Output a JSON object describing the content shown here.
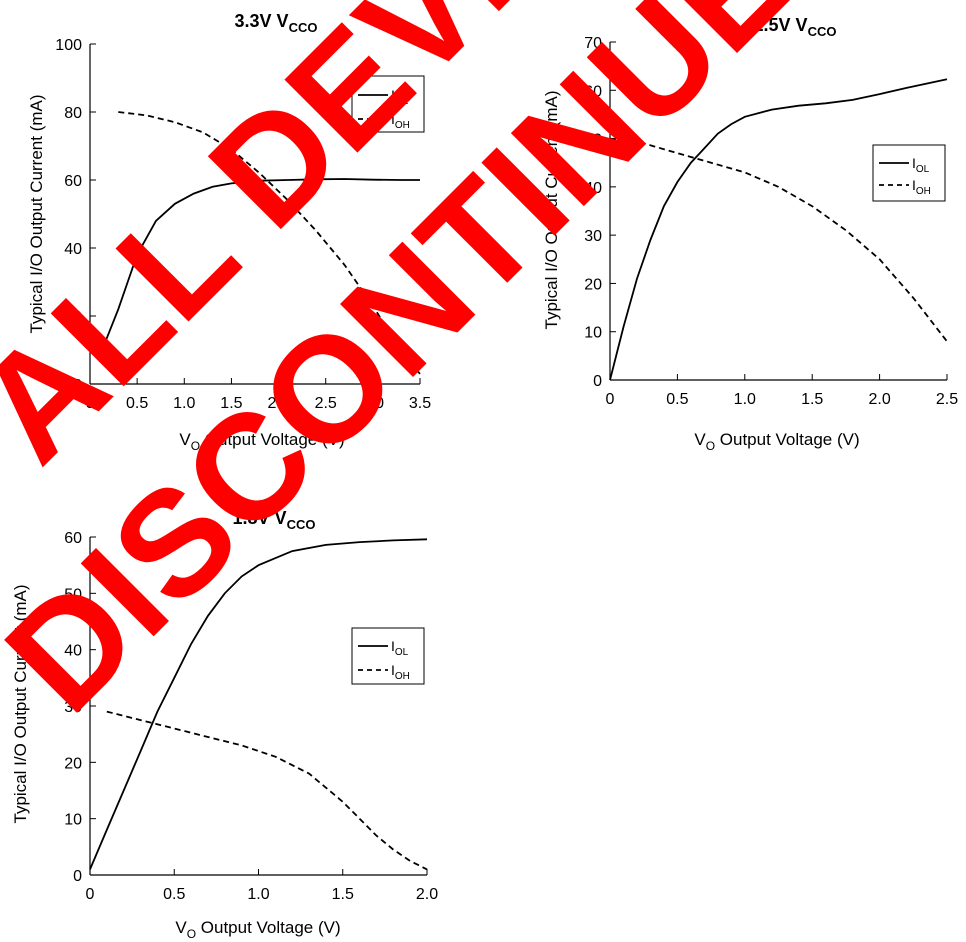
{
  "watermark": {
    "line1": "ALL DEVICES",
    "line2": "DISCONTINUED",
    "color": "#ff0000"
  },
  "chart_data": [
    {
      "type": "line",
      "title_main": "3.3V V",
      "title_sub": "CCO",
      "xlabel_main": "V",
      "xlabel_sub": "O",
      "xlabel_rest": " Output Voltage (V)",
      "ylabel": "Typical I/O Output Current (mA)",
      "xlim": [
        0,
        3.5
      ],
      "ylim": [
        0,
        100
      ],
      "xticks": [
        0,
        0.5,
        1.0,
        1.5,
        2.0,
        2.5,
        3.0,
        3.5
      ],
      "xtick_labels": [
        "0",
        "0.5",
        "1.0",
        "1.5",
        "2.0",
        "2.5",
        "3.0",
        "3.5"
      ],
      "yticks": [
        0,
        20,
        40,
        60,
        80,
        100
      ],
      "ytick_labels": [
        "0",
        "20",
        "40",
        "60",
        "80",
        "100"
      ],
      "legend_position": "top-right",
      "series": [
        {
          "name_main": "I",
          "name_sub": "OL",
          "style": "solid",
          "x": [
            0.1,
            0.3,
            0.5,
            0.7,
            0.9,
            1.1,
            1.3,
            1.5,
            1.8,
            2.1,
            2.4,
            2.7,
            3.0,
            3.3,
            3.5
          ],
          "y": [
            8,
            22,
            38,
            48,
            53,
            56,
            58,
            59,
            59.8,
            60,
            60.2,
            60.3,
            60.1,
            60,
            60
          ]
        },
        {
          "name_main": "I",
          "name_sub": "OH",
          "style": "dashed",
          "x": [
            0.3,
            0.6,
            0.9,
            1.2,
            1.5,
            1.8,
            2.1,
            2.4,
            2.7,
            3.0,
            3.2,
            3.4,
            3.5
          ],
          "y": [
            80,
            79,
            77,
            74,
            69,
            62,
            54,
            45,
            35,
            23,
            14,
            6,
            3
          ]
        }
      ]
    },
    {
      "type": "line",
      "title_main": "2.5V V",
      "title_sub": "CCO",
      "xlabel_main": "V",
      "xlabel_sub": "O",
      "xlabel_rest": " Output Voltage (V)",
      "ylabel": "Typical I/O Output Current (mA)",
      "xlim": [
        0,
        2.5
      ],
      "ylim": [
        0,
        70
      ],
      "xticks": [
        0,
        0.5,
        1.0,
        1.5,
        2.0,
        2.5
      ],
      "xtick_labels": [
        "0",
        "0.5",
        "1.0",
        "1.5",
        "2.0",
        "2.5"
      ],
      "yticks": [
        0,
        10,
        20,
        30,
        40,
        50,
        60,
        70
      ],
      "ytick_labels": [
        "0",
        "10",
        "20",
        "30",
        "40",
        "50",
        "60",
        "70"
      ],
      "legend_position": "right",
      "series": [
        {
          "name_main": "I",
          "name_sub": "OL",
          "style": "solid",
          "x": [
            0,
            0.1,
            0.2,
            0.3,
            0.4,
            0.5,
            0.6,
            0.7,
            0.8,
            0.9,
            1.0,
            1.2,
            1.4,
            1.6,
            1.8,
            2.0,
            2.2,
            2.5
          ],
          "y": [
            0,
            11,
            21,
            29,
            36,
            41,
            45,
            48,
            51,
            53,
            54.5,
            56,
            56.8,
            57.3,
            58,
            59.2,
            60.5,
            62.3
          ]
        },
        {
          "name_main": "I",
          "name_sub": "OH",
          "style": "dashed",
          "x": [
            0,
            0.25,
            0.5,
            0.75,
            1.0,
            1.25,
            1.5,
            1.75,
            2.0,
            2.25,
            2.5
          ],
          "y": [
            50,
            49,
            47,
            45,
            43,
            40,
            36,
            31,
            25,
            17,
            8
          ]
        }
      ]
    },
    {
      "type": "line",
      "title_main": "1.8V V",
      "title_sub": "CCO",
      "xlabel_main": "V",
      "xlabel_sub": "O",
      "xlabel_rest": " Output Voltage (V)",
      "ylabel": "Typical I/O Output Current (mA)",
      "xlim": [
        0,
        2.0
      ],
      "ylim": [
        0,
        60
      ],
      "xticks": [
        0,
        0.5,
        1.0,
        1.5,
        2.0
      ],
      "xtick_labels": [
        "0",
        "0.5",
        "1.0",
        "1.5",
        "2.0"
      ],
      "yticks": [
        0,
        10,
        20,
        30,
        40,
        50,
        60
      ],
      "ytick_labels": [
        "0",
        "10",
        "20",
        "30",
        "40",
        "50",
        "60"
      ],
      "legend_position": "right",
      "series": [
        {
          "name_main": "I",
          "name_sub": "OL",
          "style": "solid",
          "x": [
            0,
            0.1,
            0.2,
            0.3,
            0.4,
            0.5,
            0.6,
            0.7,
            0.8,
            0.9,
            1.0,
            1.2,
            1.4,
            1.6,
            1.8,
            2.0
          ],
          "y": [
            1,
            8,
            15,
            22,
            29,
            35,
            41,
            46,
            50,
            53,
            55,
            57.5,
            58.6,
            59.1,
            59.4,
            59.6
          ]
        },
        {
          "name_main": "I",
          "name_sub": "OH",
          "style": "dashed",
          "x": [
            0.1,
            0.3,
            0.5,
            0.7,
            0.9,
            1.1,
            1.3,
            1.5,
            1.6,
            1.7,
            1.8,
            1.9,
            2.0
          ],
          "y": [
            29,
            27.5,
            26,
            24.5,
            23,
            21,
            18,
            13,
            10,
            7,
            4.5,
            2.5,
            1
          ]
        }
      ]
    }
  ]
}
